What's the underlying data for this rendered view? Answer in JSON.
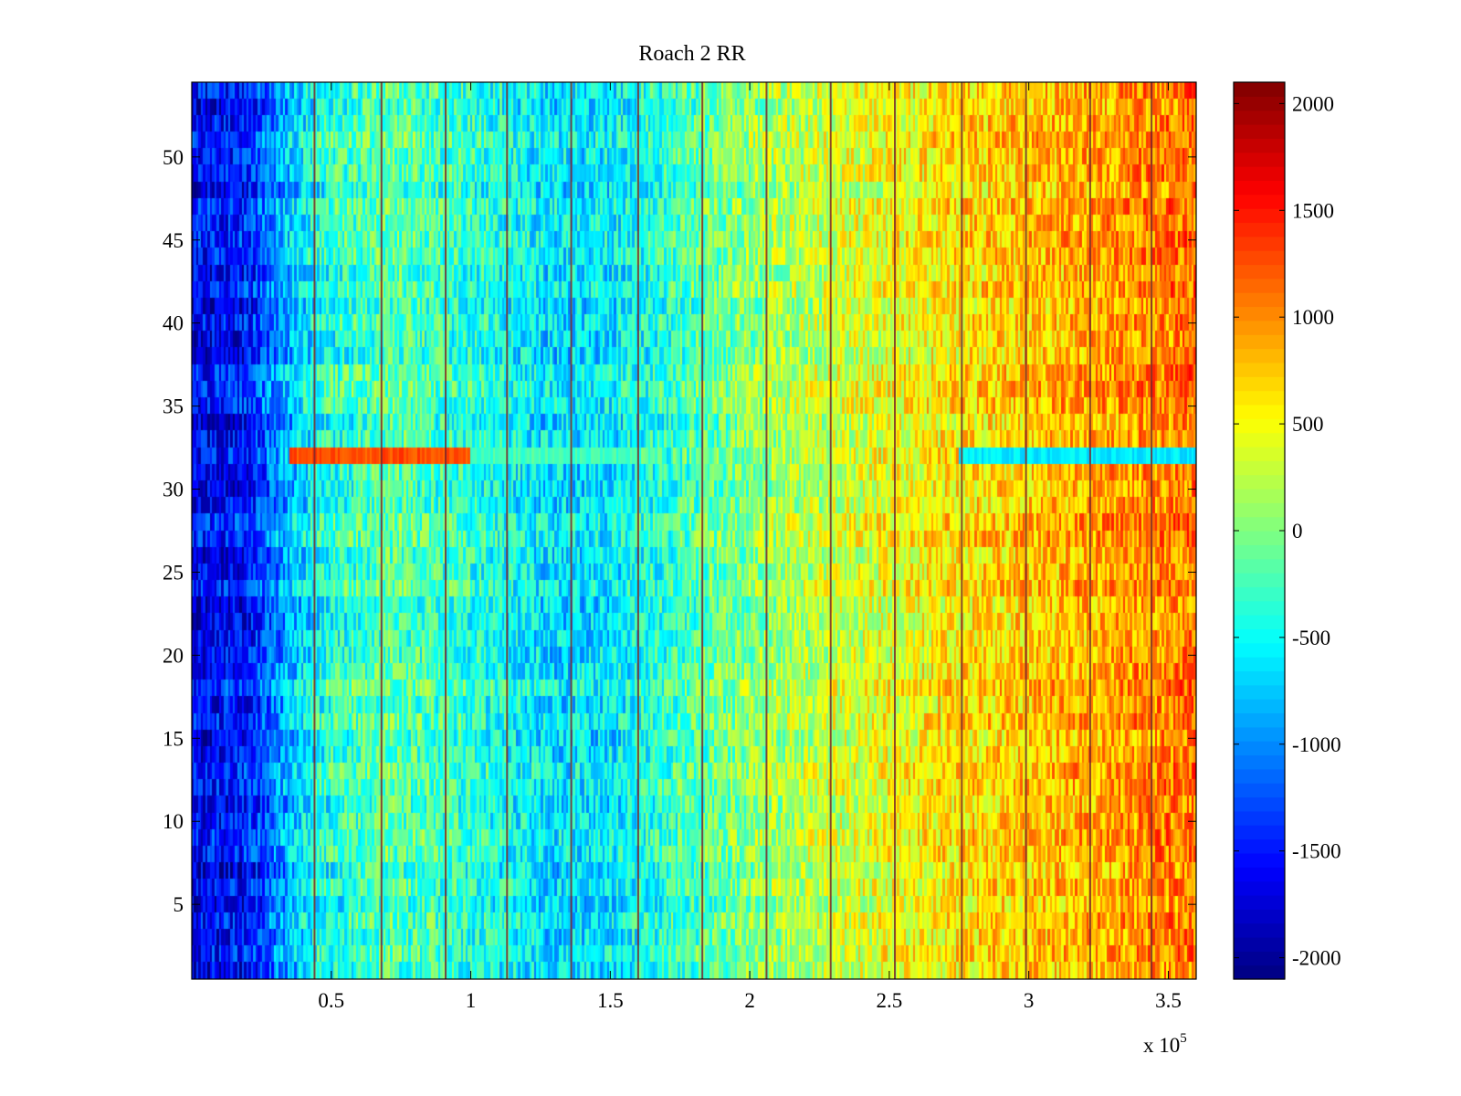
{
  "chart_data": [
    {
      "type": "heatmap",
      "title": "Roach 2 RR",
      "xlabel": "",
      "ylabel": "",
      "xlim": [
        0,
        360000
      ],
      "ylim": [
        0.5,
        54.5
      ],
      "x_ticks": [
        50000,
        100000,
        150000,
        200000,
        250000,
        300000,
        350000
      ],
      "x_tick_labels": [
        "0.5",
        "1",
        "1.5",
        "2",
        "2.5",
        "3",
        "3.5"
      ],
      "x_exponent_label": "x 10",
      "x_exponent_power": "5",
      "y_ticks": [
        5,
        10,
        15,
        20,
        25,
        30,
        35,
        40,
        45,
        50
      ],
      "y_tick_labels": [
        "5",
        "10",
        "15",
        "20",
        "25",
        "30",
        "35",
        "40",
        "45",
        "50"
      ],
      "rows": 54,
      "colormap": "jet",
      "clim": [
        -2100,
        2100
      ],
      "trend_profile": {
        "x": [
          0,
          20000,
          30000,
          45000,
          70000,
          100000,
          130000,
          150000,
          180000,
          210000,
          250000,
          280000,
          320000,
          360000
        ],
        "value": [
          -1650,
          -1500,
          -1050,
          -450,
          -150,
          -350,
          -650,
          -600,
          -200,
          150,
          450,
          650,
          850,
          1100
        ]
      },
      "row_offsets": [
        {
          "row": 32,
          "x_start": 35000,
          "x_end": 100000,
          "value": 1250
        },
        {
          "row": 32,
          "x_start": 100000,
          "x_end": 160000,
          "value": -250
        },
        {
          "row": 32,
          "x_start": 160000,
          "x_end": 275000,
          "value": null
        },
        {
          "row": 32,
          "x_start": 275000,
          "x_end": 360000,
          "value": -600
        }
      ],
      "vertical_stripe_x": [
        44000,
        68000,
        91000,
        113000,
        136000,
        160000,
        183000,
        206000,
        229000,
        252000,
        276000,
        299000,
        322000,
        344000
      ],
      "stripe_value": 2000
    },
    {
      "type": "colorbar",
      "ticks": [
        2000,
        1500,
        1000,
        500,
        0,
        -500,
        -1000,
        -1500,
        -2000
      ],
      "tick_labels": [
        "2000",
        "1500",
        "1000",
        "500",
        "0",
        "-500",
        "-1000",
        "-1500",
        "-2000"
      ],
      "range": [
        -2100,
        2100
      ]
    }
  ]
}
